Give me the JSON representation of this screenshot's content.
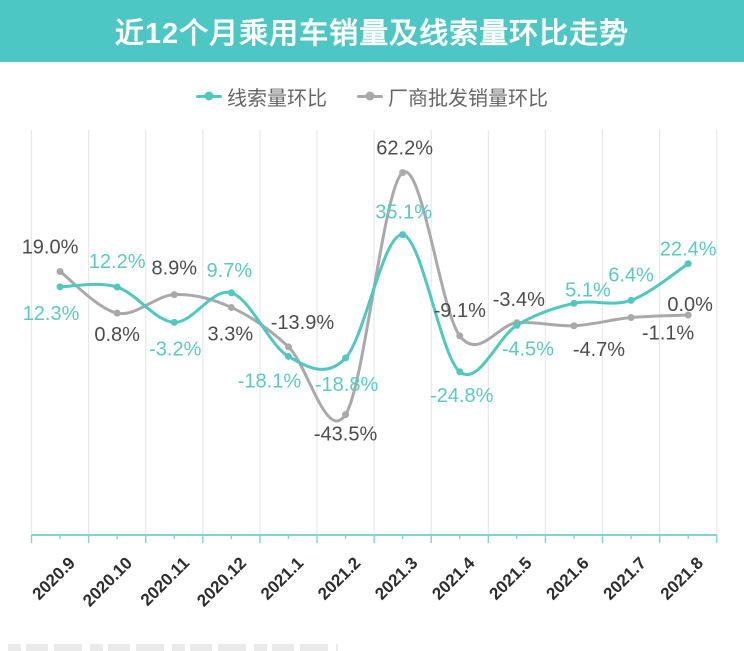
{
  "title": "近12个月乘用车销量及线索量环比走势",
  "colors": {
    "banner": "#4cc7c4",
    "axis": "#7fd4d2",
    "gridline": "#e8e8e8",
    "x_label": "#2d2d2d",
    "legend_text": "#666666"
  },
  "chart_data": {
    "type": "line",
    "smooth": true,
    "title": "近12个月乘用车销量及线索量环比走势",
    "categories": [
      "2020.9",
      "2020.10",
      "2020.11",
      "2020.12",
      "2021.1",
      "2021.2",
      "2021.3",
      "2021.4",
      "2021.5",
      "2021.6",
      "2021.7",
      "2021.8"
    ],
    "series": [
      {
        "name": "线索量环比",
        "color": "#4fc8bf",
        "label_color": "#5bc9c2",
        "values": [
          12.3,
          12.2,
          -3.2,
          9.7,
          -18.1,
          -18.8,
          35.1,
          -24.8,
          -4.5,
          5.1,
          6.4,
          22.4
        ]
      },
      {
        "name": "厂商批发销量环比",
        "color": "#a9a9a9",
        "label_color": "#4c4c4c",
        "values": [
          19.0,
          0.8,
          8.9,
          3.3,
          -13.9,
          -43.5,
          62.2,
          -9.1,
          -3.4,
          -4.7,
          -1.1,
          0.0
        ]
      }
    ],
    "value_suffix": "%",
    "value_decimals": 1,
    "xlabel": "",
    "ylabel": "",
    "ylim": [
      -96,
      81
    ],
    "grid": "vertical",
    "legend_position": "top",
    "x_label_rotation": -45
  }
}
